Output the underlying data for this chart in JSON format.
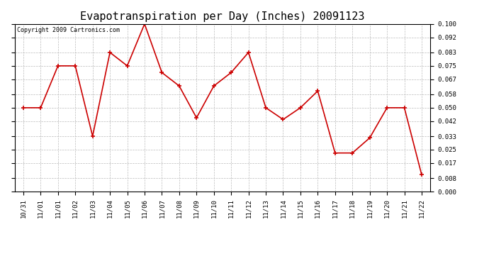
{
  "title": "Evapotranspiration per Day (Inches) 20091123",
  "copyright_text": "Copyright 2009 Cartronics.com",
  "x_labels": [
    "10/31",
    "11/01",
    "11/01",
    "11/02",
    "11/03",
    "11/04",
    "11/05",
    "11/06",
    "11/07",
    "11/08",
    "11/09",
    "11/10",
    "11/11",
    "11/12",
    "11/13",
    "11/14",
    "11/15",
    "11/16",
    "11/17",
    "11/18",
    "11/19",
    "11/20",
    "11/21",
    "11/22"
  ],
  "y_values": [
    0.05,
    0.05,
    0.075,
    0.075,
    0.033,
    0.083,
    0.075,
    0.1,
    0.071,
    0.063,
    0.044,
    0.063,
    0.071,
    0.083,
    0.05,
    0.043,
    0.05,
    0.06,
    0.023,
    0.023,
    0.032,
    0.05,
    0.05,
    0.01
  ],
  "ylim": [
    0.0,
    0.1
  ],
  "yticks": [
    0.0,
    0.008,
    0.017,
    0.025,
    0.033,
    0.042,
    0.05,
    0.058,
    0.067,
    0.075,
    0.083,
    0.092,
    0.1
  ],
  "line_color": "#cc0000",
  "marker": "+",
  "marker_size": 5,
  "marker_edge_width": 1.2,
  "line_width": 1.2,
  "background_color": "#ffffff",
  "plot_bg_color": "#ffffff",
  "grid_color": "#bbbbbb",
  "title_fontsize": 11,
  "tick_fontsize": 6.5,
  "copyright_fontsize": 6
}
